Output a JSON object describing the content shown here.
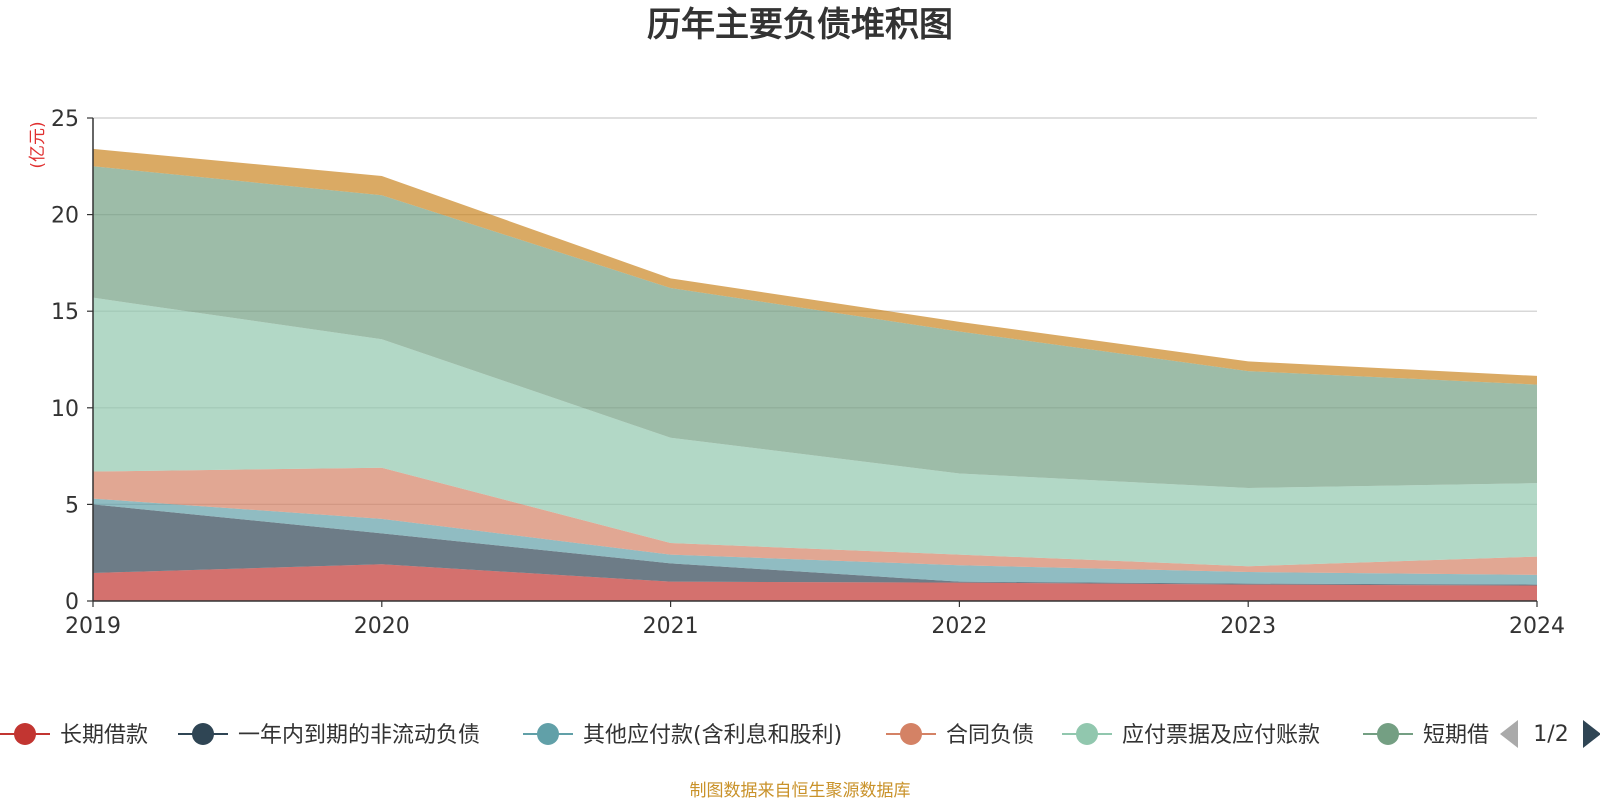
{
  "chart_data": {
    "type": "area",
    "stacked": true,
    "title": "历年主要负债堆积图",
    "unit_label": "(亿元)",
    "x": [
      "2019",
      "2020",
      "2021",
      "2022",
      "2023",
      "2024"
    ],
    "ylim": [
      0,
      25
    ],
    "yticks": [
      "0",
      "5",
      "10",
      "15",
      "20",
      "25"
    ],
    "grid": true,
    "series": [
      {
        "name": "长期借款",
        "color": "#c23531",
        "values": [
          1.45,
          1.9,
          1.0,
          0.95,
          0.85,
          0.8
        ]
      },
      {
        "name": "一年内到期的非流动负债",
        "color": "#2f4554",
        "values": [
          3.55,
          1.6,
          0.95,
          0.05,
          0.05,
          0.05
        ]
      },
      {
        "name": "其他应付款(含利息和股利)",
        "color": "#61a0a8",
        "values": [
          0.3,
          0.75,
          0.45,
          0.85,
          0.6,
          0.5
        ]
      },
      {
        "name": "合同负债",
        "color": "#d48265",
        "values": [
          1.4,
          2.65,
          0.6,
          0.55,
          0.3,
          0.95
        ]
      },
      {
        "name": "应付票据及应付账款",
        "color": "#91c7ae",
        "values": [
          9.0,
          6.65,
          5.45,
          4.2,
          4.05,
          3.8
        ]
      },
      {
        "name": "短期借款",
        "color": "#749f83",
        "values": [
          6.8,
          7.45,
          7.75,
          7.35,
          6.05,
          5.1
        ]
      },
      {
        "name": "",
        "color": "#ca8622",
        "values": [
          0.9,
          1.0,
          0.5,
          0.5,
          0.5,
          0.45
        ]
      }
    ],
    "legend_position": "bottom"
  },
  "legend": {
    "items": [
      "长期借款",
      "一年内到期的非流动负债",
      "其他应付款(含利息和股利)",
      "合同负债",
      "应付票据及应付账款",
      "短期借"
    ],
    "page": "1/2"
  },
  "footer": {
    "source": "制图数据来自恒生聚源数据库"
  },
  "icons": {
    "prev": "triangle-left-icon",
    "next": "triangle-right-icon",
    "legend_marker": "circle-line-marker-icon"
  }
}
